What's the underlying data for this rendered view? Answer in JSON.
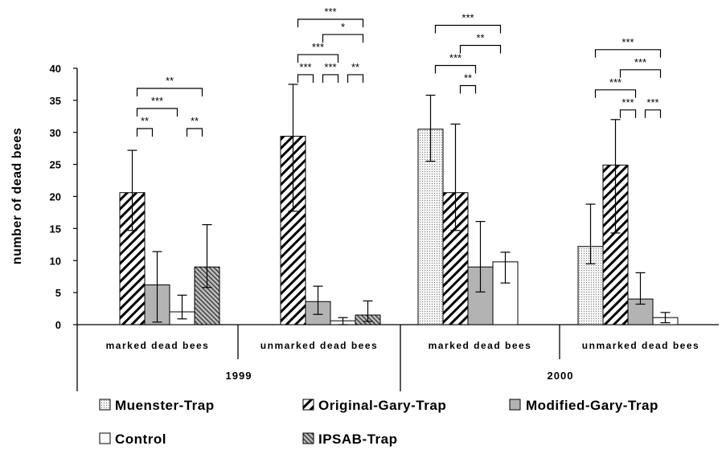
{
  "chart_data": {
    "type": "bar",
    "ylabel": "number of dead bees",
    "ylim": [
      0,
      40
    ],
    "yticks": [
      "0",
      "5",
      "10",
      "15",
      "20",
      "25",
      "30",
      "35",
      "40"
    ],
    "years": [
      "1999",
      "2000"
    ],
    "categories": [
      "marked dead bees",
      "unmarked dead bees",
      "marked dead bees",
      "unmarked dead bees"
    ],
    "series": [
      {
        "name": "Muenster-Trap",
        "values": [
          null,
          null,
          30.5,
          12.2
        ],
        "err_low": [
          null,
          null,
          25.5,
          9.5
        ],
        "err_high": [
          null,
          null,
          35.8,
          18.8
        ]
      },
      {
        "name": "Original-Gary-Trap",
        "values": [
          20.6,
          29.4,
          20.6,
          24.9
        ],
        "err_low": [
          14.7,
          17.7,
          14.7,
          14.3
        ],
        "err_high": [
          27.2,
          37.5,
          31.3,
          32.0
        ]
      },
      {
        "name": "Modified-Gary-Trap",
        "values": [
          6.2,
          3.6,
          9.0,
          4.0
        ],
        "err_low": [
          0.4,
          1.6,
          5.1,
          3.2
        ],
        "err_high": [
          11.4,
          6.0,
          16.1,
          8.1
        ]
      },
      {
        "name": "Control",
        "values": [
          2.0,
          0.6,
          9.8,
          1.1
        ],
        "err_low": [
          0.9,
          0.0,
          6.5,
          0.3
        ],
        "err_high": [
          4.6,
          1.1,
          11.3,
          1.9
        ]
      },
      {
        "name": "IPSAB-Trap",
        "values": [
          9.0,
          1.5,
          null,
          null
        ],
        "err_low": [
          5.8,
          0.5,
          null,
          null
        ],
        "err_high": [
          15.6,
          3.7,
          null,
          null
        ]
      }
    ],
    "significance": [
      {
        "group": 0,
        "from": 1,
        "to": 2,
        "label": "**"
      },
      {
        "group": 0,
        "from": 3,
        "to": 4,
        "label": "**"
      },
      {
        "group": 0,
        "from": 1,
        "to": 3,
        "label": "***"
      },
      {
        "group": 0,
        "from": 1,
        "to": 4,
        "label": "**"
      },
      {
        "group": 1,
        "from": 1,
        "to": 2,
        "label": "***"
      },
      {
        "group": 1,
        "from": 2,
        "to": 3,
        "label": "***"
      },
      {
        "group": 1,
        "from": 3,
        "to": 4,
        "label": "**"
      },
      {
        "group": 1,
        "from": 2,
        "to": 4,
        "label": "*"
      },
      {
        "group": 1,
        "from": 1,
        "to": 3,
        "label": "***"
      },
      {
        "group": 1,
        "from": 1,
        "to": 4,
        "label": "***"
      },
      {
        "group": 2,
        "from": 1,
        "to": 2,
        "label": "**"
      },
      {
        "group": 2,
        "from": 1,
        "to": 3,
        "label": "**"
      },
      {
        "group": 2,
        "from": 0,
        "to": 2,
        "label": "***"
      },
      {
        "group": 2,
        "from": 0,
        "to": 3,
        "label": "***"
      },
      {
        "group": 3,
        "from": 1,
        "to": 2,
        "label": "***"
      },
      {
        "group": 3,
        "from": 2,
        "to": 3,
        "label": "***"
      },
      {
        "group": 3,
        "from": 1,
        "to": 3,
        "label": "***"
      },
      {
        "group": 3,
        "from": 0,
        "to": 2,
        "label": "***"
      },
      {
        "group": 3,
        "from": 0,
        "to": 3,
        "label": "***"
      }
    ],
    "legend_position": "bottom",
    "grid": false
  }
}
